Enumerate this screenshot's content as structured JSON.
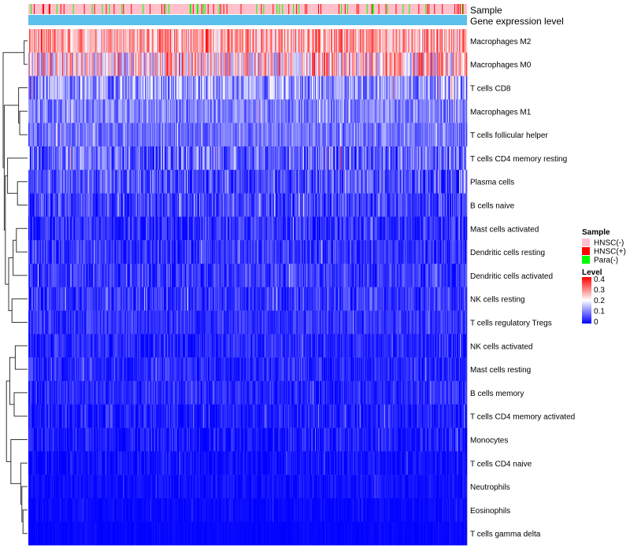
{
  "chart_data": {
    "type": "heatmap",
    "title": "",
    "annotation_tracks": [
      {
        "key": "sample",
        "label": "Sample"
      },
      {
        "key": "expression",
        "label": "Gene expression level"
      }
    ],
    "rows": [
      {
        "label": "Macrophages M2",
        "level": 0.27,
        "spread": 0.1
      },
      {
        "label": "Macrophages M0",
        "level": 0.22,
        "spread": 0.14
      },
      {
        "label": "T cells CD8",
        "level": 0.12,
        "spread": 0.09
      },
      {
        "label": "Macrophages M1",
        "level": 0.1,
        "spread": 0.06
      },
      {
        "label": "T cells follicular helper",
        "level": 0.09,
        "spread": 0.05
      },
      {
        "label": "T cells CD4 memory resting",
        "level": 0.08,
        "spread": 0.09
      },
      {
        "label": "Plasma cells",
        "level": 0.06,
        "spread": 0.07
      },
      {
        "label": "B cells naive",
        "level": 0.05,
        "spread": 0.06
      },
      {
        "label": "Mast cells activated",
        "level": 0.04,
        "spread": 0.05
      },
      {
        "label": "Dendritic cells resting",
        "level": 0.04,
        "spread": 0.05
      },
      {
        "label": "Dendritic cells activated",
        "level": 0.04,
        "spread": 0.05
      },
      {
        "label": "NK cells resting",
        "level": 0.04,
        "spread": 0.05
      },
      {
        "label": "T cells regulatory  Tregs",
        "level": 0.04,
        "spread": 0.04
      },
      {
        "label": "NK cells activated",
        "level": 0.03,
        "spread": 0.04
      },
      {
        "label": "Mast cells resting",
        "level": 0.03,
        "spread": 0.04
      },
      {
        "label": "B cells memory",
        "level": 0.03,
        "spread": 0.04
      },
      {
        "label": "T cells CD4 memory activated",
        "level": 0.02,
        "spread": 0.04
      },
      {
        "label": "Monocytes",
        "level": 0.02,
        "spread": 0.04
      },
      {
        "label": "T cells CD4 naive",
        "level": 0.01,
        "spread": 0.03
      },
      {
        "label": "Neutrophils",
        "level": 0.01,
        "spread": 0.02
      },
      {
        "label": "Eosinophils",
        "level": 0.005,
        "spread": 0.015
      },
      {
        "label": "T cells gamma delta",
        "level": 0.003,
        "spread": 0.01
      }
    ],
    "columns_count": 560,
    "sample_groups": [
      {
        "name": "HNSC(-)",
        "color": "#FFC0CB",
        "fraction": 0.84
      },
      {
        "name": "HNSC(+)",
        "color": "#FF0000",
        "fraction": 0.09
      },
      {
        "name": "Para(-)",
        "color": "#00FF00",
        "fraction": 0.07
      }
    ],
    "expression_color": "#5BC0EB",
    "color_scale": {
      "min": 0,
      "max": 0.4,
      "stops": [
        {
          "value": 0,
          "color": "#0000FF"
        },
        {
          "value": 0.2,
          "color": "#FFFFFF"
        },
        {
          "value": 0.4,
          "color": "#FF0000"
        }
      ]
    },
    "legends": {
      "sample": {
        "title": "Sample",
        "entries": [
          {
            "label": "HNSC(-)",
            "color": "#FFC0CB"
          },
          {
            "label": "HNSC(+)",
            "color": "#FF0000"
          },
          {
            "label": "Para(-)",
            "color": "#00FF00"
          }
        ]
      },
      "level": {
        "title": "Level",
        "ticks": [
          "0.4",
          "0.3",
          "0.2",
          "0.1",
          "0"
        ]
      }
    },
    "dendrogram_merge_order": [
      [
        0,
        1
      ],
      [
        20,
        21
      ],
      [
        19,
        "m1"
      ],
      [
        18,
        "m2"
      ],
      [
        3,
        4
      ],
      [
        2,
        "m4"
      ],
      [
        6,
        7
      ],
      [
        8,
        9
      ],
      [
        13,
        14
      ],
      [
        15,
        16
      ],
      [
        10,
        "m7"
      ],
      [
        11,
        12
      ],
      [
        17,
        "m3"
      ],
      [
        "m8",
        "m9"
      ],
      [
        "m10",
        "m11"
      ],
      [
        5,
        "m6"
      ],
      [
        "m12",
        "m13"
      ],
      [
        "m15",
        "m14"
      ],
      [
        "m5",
        "m17"
      ],
      [
        "m0",
        "m18"
      ]
    ]
  }
}
